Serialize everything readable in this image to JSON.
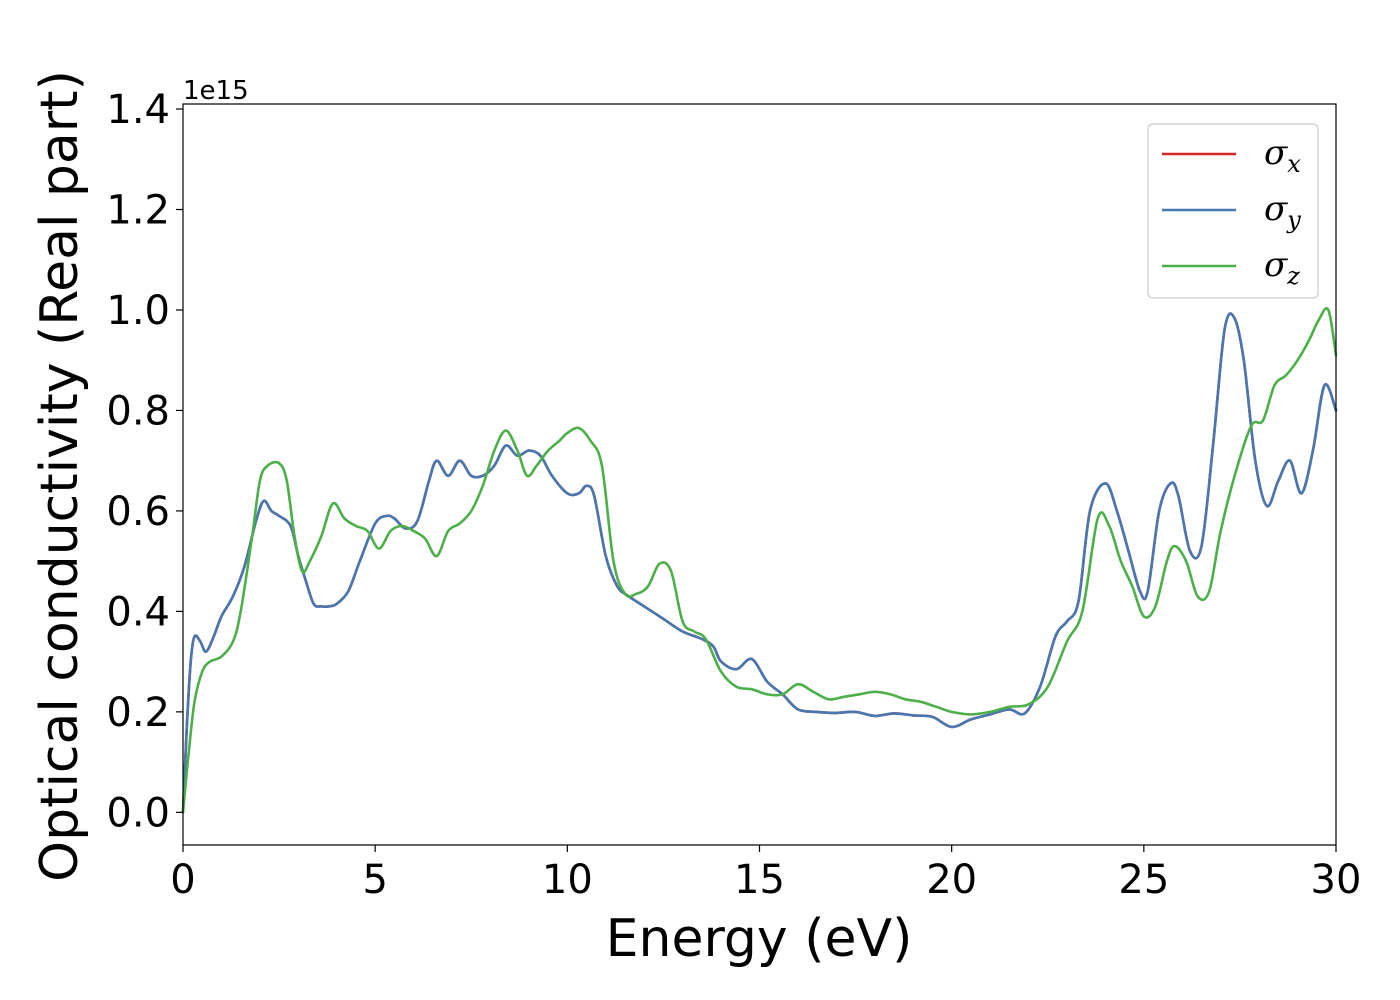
{
  "chart_data": {
    "type": "line",
    "xlabel": "Energy (eV)",
    "ylabel": "Optical conductivity (Real part)",
    "y_offset_text": "1e15",
    "xlim": [
      0,
      30
    ],
    "ylim": [
      -0.065,
      1.41
    ],
    "x_ticks": [
      0,
      5,
      10,
      15,
      20,
      25,
      30
    ],
    "x_tick_labels": [
      "0",
      "5",
      "10",
      "15",
      "20",
      "25",
      "30"
    ],
    "y_ticks": [
      0.0,
      0.2,
      0.4,
      0.6,
      0.8,
      1.0,
      1.2,
      1.4
    ],
    "y_tick_labels": [
      "0.0",
      "0.2",
      "0.4",
      "0.6",
      "0.8",
      "1.0",
      "1.2",
      "1.4"
    ],
    "grid": false,
    "legend_position": "top-right",
    "series": [
      {
        "name": "σx",
        "legend_symbol": "σ",
        "legend_subscript": "x",
        "color": "#d62728",
        "x": [
          0,
          0.1,
          0.2,
          0.3,
          0.45,
          0.6,
          0.8,
          1.0,
          1.3,
          1.6,
          1.9,
          2.1,
          2.3,
          2.5,
          2.8,
          3.0,
          3.2,
          3.4,
          3.6,
          3.8,
          4.0,
          4.3,
          4.6,
          5.0,
          5.3,
          5.5,
          5.8,
          6.1,
          6.4,
          6.6,
          6.9,
          7.2,
          7.5,
          7.8,
          8.1,
          8.4,
          8.7,
          9.0,
          9.3,
          9.6,
          10.0,
          10.3,
          10.5,
          10.7,
          11.0,
          11.3,
          11.6,
          12.0,
          12.5,
          13.0,
          13.5,
          13.8,
          14.0,
          14.4,
          14.8,
          15.2,
          15.6,
          16.0,
          16.5,
          17.0,
          17.5,
          18.0,
          18.5,
          19.0,
          19.5,
          20.0,
          20.5,
          21.0,
          21.5,
          21.9,
          22.3,
          22.7,
          23.0,
          23.3,
          23.6,
          24.0,
          24.3,
          24.6,
          24.9,
          25.1,
          25.4,
          25.7,
          25.9,
          26.2,
          26.5,
          26.8,
          27.1,
          27.35,
          27.6,
          27.9,
          28.2,
          28.5,
          28.8,
          29.1,
          29.4,
          29.7,
          30.0
        ],
        "y": [
          0.0,
          0.17,
          0.3,
          0.35,
          0.34,
          0.32,
          0.35,
          0.39,
          0.43,
          0.49,
          0.58,
          0.62,
          0.6,
          0.59,
          0.57,
          0.51,
          0.46,
          0.415,
          0.41,
          0.41,
          0.415,
          0.44,
          0.5,
          0.575,
          0.59,
          0.585,
          0.565,
          0.58,
          0.66,
          0.7,
          0.67,
          0.7,
          0.67,
          0.67,
          0.69,
          0.73,
          0.71,
          0.72,
          0.71,
          0.67,
          0.635,
          0.635,
          0.65,
          0.63,
          0.51,
          0.45,
          0.43,
          0.41,
          0.385,
          0.36,
          0.345,
          0.33,
          0.3,
          0.285,
          0.305,
          0.26,
          0.235,
          0.205,
          0.2,
          0.198,
          0.2,
          0.192,
          0.197,
          0.193,
          0.19,
          0.17,
          0.185,
          0.195,
          0.205,
          0.197,
          0.25,
          0.35,
          0.38,
          0.42,
          0.6,
          0.655,
          0.6,
          0.52,
          0.44,
          0.44,
          0.6,
          0.655,
          0.63,
          0.52,
          0.53,
          0.73,
          0.96,
          0.985,
          0.9,
          0.7,
          0.61,
          0.66,
          0.7,
          0.635,
          0.72,
          0.85,
          0.8
        ]
      },
      {
        "name": "σy",
        "legend_symbol": "σ",
        "legend_subscript": "y",
        "color": "#4878b0",
        "x": [
          0,
          0.1,
          0.2,
          0.3,
          0.45,
          0.6,
          0.8,
          1.0,
          1.3,
          1.6,
          1.9,
          2.1,
          2.3,
          2.5,
          2.8,
          3.0,
          3.2,
          3.4,
          3.6,
          3.8,
          4.0,
          4.3,
          4.6,
          5.0,
          5.3,
          5.5,
          5.8,
          6.1,
          6.4,
          6.6,
          6.9,
          7.2,
          7.5,
          7.8,
          8.1,
          8.4,
          8.7,
          9.0,
          9.3,
          9.6,
          10.0,
          10.3,
          10.5,
          10.7,
          11.0,
          11.3,
          11.6,
          12.0,
          12.5,
          13.0,
          13.5,
          13.8,
          14.0,
          14.4,
          14.8,
          15.2,
          15.6,
          16.0,
          16.5,
          17.0,
          17.5,
          18.0,
          18.5,
          19.0,
          19.5,
          20.0,
          20.5,
          21.0,
          21.5,
          21.9,
          22.3,
          22.7,
          23.0,
          23.3,
          23.6,
          24.0,
          24.3,
          24.6,
          24.9,
          25.1,
          25.4,
          25.7,
          25.9,
          26.2,
          26.5,
          26.8,
          27.1,
          27.35,
          27.6,
          27.9,
          28.2,
          28.5,
          28.8,
          29.1,
          29.4,
          29.7,
          30.0
        ],
        "y": [
          0.0,
          0.17,
          0.3,
          0.35,
          0.34,
          0.32,
          0.35,
          0.39,
          0.43,
          0.49,
          0.58,
          0.62,
          0.6,
          0.59,
          0.57,
          0.51,
          0.46,
          0.415,
          0.41,
          0.41,
          0.415,
          0.44,
          0.5,
          0.575,
          0.59,
          0.585,
          0.565,
          0.58,
          0.66,
          0.7,
          0.67,
          0.7,
          0.67,
          0.67,
          0.69,
          0.73,
          0.71,
          0.72,
          0.71,
          0.67,
          0.635,
          0.635,
          0.65,
          0.63,
          0.51,
          0.45,
          0.43,
          0.41,
          0.385,
          0.36,
          0.345,
          0.33,
          0.3,
          0.285,
          0.305,
          0.26,
          0.235,
          0.205,
          0.2,
          0.198,
          0.2,
          0.192,
          0.197,
          0.193,
          0.19,
          0.17,
          0.185,
          0.195,
          0.205,
          0.197,
          0.25,
          0.35,
          0.38,
          0.42,
          0.6,
          0.655,
          0.6,
          0.52,
          0.44,
          0.44,
          0.6,
          0.655,
          0.63,
          0.52,
          0.53,
          0.73,
          0.96,
          0.985,
          0.9,
          0.7,
          0.61,
          0.66,
          0.7,
          0.635,
          0.72,
          0.85,
          0.8
        ]
      },
      {
        "name": "σz",
        "legend_symbol": "σ",
        "legend_subscript": "z",
        "color": "#4daf4a",
        "x": [
          0,
          0.15,
          0.3,
          0.5,
          0.7,
          1.0,
          1.3,
          1.5,
          1.8,
          2.0,
          2.2,
          2.5,
          2.7,
          2.9,
          3.1,
          3.3,
          3.6,
          3.9,
          4.2,
          4.5,
          4.8,
          5.1,
          5.4,
          5.7,
          6.0,
          6.3,
          6.6,
          6.9,
          7.2,
          7.5,
          7.8,
          8.1,
          8.4,
          8.7,
          8.95,
          9.2,
          9.5,
          9.8,
          10.0,
          10.3,
          10.6,
          10.9,
          11.2,
          11.5,
          11.8,
          12.1,
          12.4,
          12.7,
          13.0,
          13.3,
          13.6,
          14.0,
          14.4,
          14.8,
          15.2,
          15.6,
          16.0,
          16.4,
          16.8,
          17.2,
          17.6,
          18.0,
          18.4,
          18.8,
          19.2,
          19.6,
          20.0,
          20.5,
          21.0,
          21.5,
          22.0,
          22.5,
          23.0,
          23.4,
          23.8,
          24.1,
          24.4,
          24.7,
          25.0,
          25.3,
          25.6,
          25.8,
          26.1,
          26.4,
          26.7,
          27.0,
          27.4,
          27.8,
          28.1,
          28.4,
          28.7,
          29.0,
          29.3,
          29.55,
          29.8,
          30.0
        ],
        "y": [
          0.0,
          0.12,
          0.22,
          0.28,
          0.3,
          0.31,
          0.34,
          0.4,
          0.55,
          0.66,
          0.69,
          0.695,
          0.66,
          0.55,
          0.48,
          0.5,
          0.55,
          0.615,
          0.585,
          0.57,
          0.56,
          0.525,
          0.56,
          0.57,
          0.56,
          0.545,
          0.51,
          0.56,
          0.575,
          0.6,
          0.65,
          0.72,
          0.76,
          0.72,
          0.67,
          0.69,
          0.72,
          0.74,
          0.755,
          0.765,
          0.74,
          0.69,
          0.5,
          0.435,
          0.435,
          0.45,
          0.495,
          0.48,
          0.38,
          0.36,
          0.345,
          0.28,
          0.25,
          0.245,
          0.235,
          0.235,
          0.255,
          0.24,
          0.225,
          0.23,
          0.235,
          0.24,
          0.235,
          0.225,
          0.22,
          0.21,
          0.2,
          0.195,
          0.2,
          0.21,
          0.215,
          0.25,
          0.34,
          0.4,
          0.585,
          0.57,
          0.5,
          0.45,
          0.39,
          0.41,
          0.5,
          0.53,
          0.5,
          0.43,
          0.44,
          0.56,
          0.68,
          0.77,
          0.78,
          0.85,
          0.87,
          0.9,
          0.94,
          0.98,
          1.0,
          0.91
        ]
      }
    ]
  }
}
